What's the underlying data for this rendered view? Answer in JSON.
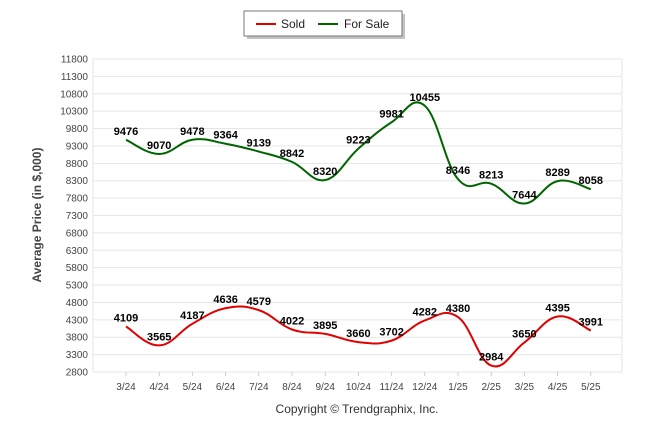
{
  "chart_data": {
    "type": "line",
    "categories": [
      "3/24",
      "4/24",
      "5/24",
      "6/24",
      "7/24",
      "8/24",
      "9/24",
      "10/24",
      "11/24",
      "12/24",
      "1/25",
      "2/25",
      "3/25",
      "4/25",
      "5/25"
    ],
    "series": [
      {
        "name": "Sold",
        "color": "#e00000",
        "values": [
          4109,
          3565,
          4187,
          4636,
          4579,
          4022,
          3895,
          3660,
          3702,
          4282,
          4380,
          2984,
          3650,
          4395,
          3991
        ]
      },
      {
        "name": "For Sale",
        "color": "#006400",
        "values": [
          9476,
          9070,
          9478,
          9364,
          9139,
          8842,
          8320,
          9223,
          9981,
          10455,
          8346,
          8213,
          7644,
          8289,
          8058
        ]
      }
    ],
    "ylabel": "Average Price (in $,000)",
    "xlabel": "",
    "ylim": [
      2800,
      11800
    ],
    "yticks": [
      2800,
      3300,
      3800,
      4300,
      4800,
      5300,
      5800,
      6300,
      6800,
      7300,
      7800,
      8300,
      8800,
      9300,
      9800,
      10300,
      10800,
      11300,
      11800
    ],
    "grid": true,
    "legend": "top-center"
  },
  "footer": "Copyright © Trendgraphix, Inc."
}
